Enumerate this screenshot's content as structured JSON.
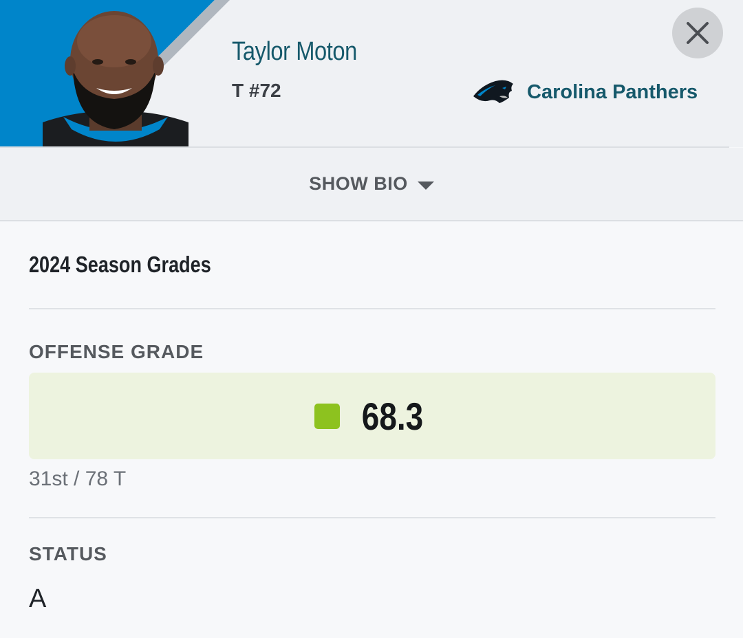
{
  "player": {
    "name": "Taylor Moton",
    "position_number": "T #72"
  },
  "team": {
    "name": "Carolina Panthers",
    "logo_icon": "panther-logo-icon"
  },
  "colors": {
    "team_blue": "#0085ca",
    "name_teal": "#16596b",
    "grade_green": "#8dc21f",
    "grade_bg": "#edf3df"
  },
  "bio": {
    "toggle_label": "SHOW BIO"
  },
  "grades": {
    "section_title": "2024 Season Grades",
    "offense_label": "OFFENSE GRADE",
    "offense_value": "68.3",
    "rank": "31st / 78 T"
  },
  "status": {
    "label": "STATUS",
    "value": "A"
  }
}
